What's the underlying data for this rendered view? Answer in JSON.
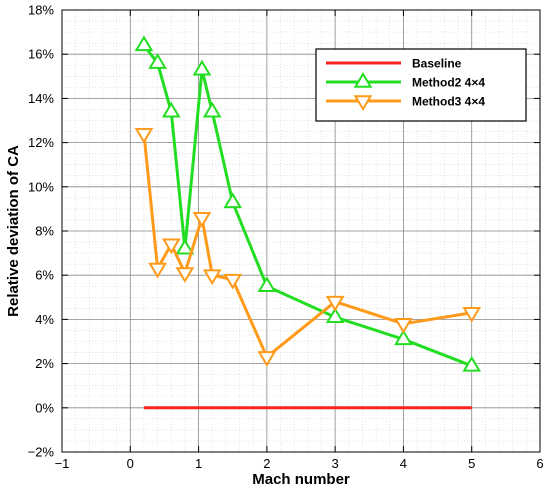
{
  "chart_data": {
    "type": "line",
    "xlabel": "Mach number",
    "ylabel": "Relative deviation of CA",
    "xlim": [
      -1,
      6
    ],
    "ylim": [
      -2,
      18
    ],
    "x_ticks": [
      -1,
      0,
      1,
      2,
      3,
      4,
      5,
      6
    ],
    "y_ticks": [
      -2,
      0,
      2,
      4,
      6,
      8,
      10,
      12,
      14,
      16,
      18
    ],
    "y_unit": "%",
    "grid": true,
    "legend_position": "top-right",
    "series": [
      {
        "name": "Baseline",
        "color": "#ff2020",
        "marker": "none",
        "x": [
          0.2,
          5.0
        ],
        "y": [
          0.0,
          0.0
        ]
      },
      {
        "name": "Method2  4×4",
        "color": "#22dd22",
        "marker": "triangle-up",
        "x": [
          0.2,
          0.4,
          0.6,
          0.8,
          1.05,
          1.2,
          1.5,
          2.0,
          3.0,
          4.0,
          5.0
        ],
        "y": [
          16.4,
          15.6,
          13.4,
          7.2,
          15.3,
          13.4,
          9.3,
          5.5,
          4.1,
          3.1,
          1.9
        ]
      },
      {
        "name": "Method3  4×4",
        "color": "#ff9a1a",
        "marker": "triangle-down",
        "x": [
          0.2,
          0.4,
          0.6,
          0.8,
          1.05,
          1.2,
          1.5,
          2.0,
          3.0,
          4.0,
          5.0
        ],
        "y": [
          12.4,
          6.3,
          7.4,
          6.1,
          8.6,
          6.0,
          5.8,
          2.3,
          4.8,
          3.8,
          4.3
        ]
      }
    ]
  }
}
